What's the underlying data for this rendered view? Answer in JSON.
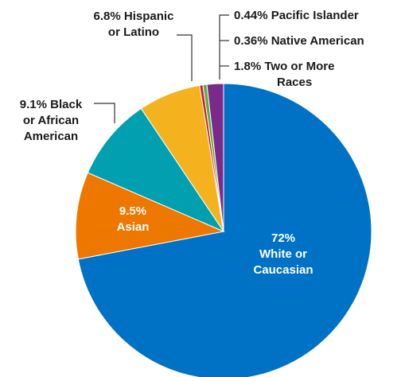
{
  "chart_data": {
    "type": "pie",
    "title": "",
    "start_angle_deg": 0,
    "direction": "clockwise",
    "slices": [
      {
        "name": "White or Caucasian",
        "value": 72,
        "label_lines": [
          "72%",
          "White or",
          "Caucasian"
        ],
        "color": "#0072c6"
      },
      {
        "name": "Asian",
        "value": 9.5,
        "label_lines": [
          "9.5%",
          "Asian"
        ],
        "color": "#ee7700"
      },
      {
        "name": "Black or African American",
        "value": 9.1,
        "label_lines": [
          "9.1% Black",
          "or African",
          "American"
        ],
        "color": "#00a0b0"
      },
      {
        "name": "Hispanic or Latino",
        "value": 6.8,
        "label_lines": [
          "6.8% Hispanic",
          "or Latino"
        ],
        "color": "#f5b21f"
      },
      {
        "name": "Native American",
        "value": 0.36,
        "label_lines": [
          "0.36% Native American"
        ],
        "color": "#d42020"
      },
      {
        "name": "Pacific Islander",
        "value": 0.44,
        "label_lines": [
          "0.44% Pacific Islander"
        ],
        "color": "#5aae46"
      },
      {
        "name": "Two or More Races",
        "value": 1.8,
        "label_lines": [
          "1.8% Two or More",
          "Races"
        ],
        "color": "#7c2a8a"
      }
    ]
  }
}
